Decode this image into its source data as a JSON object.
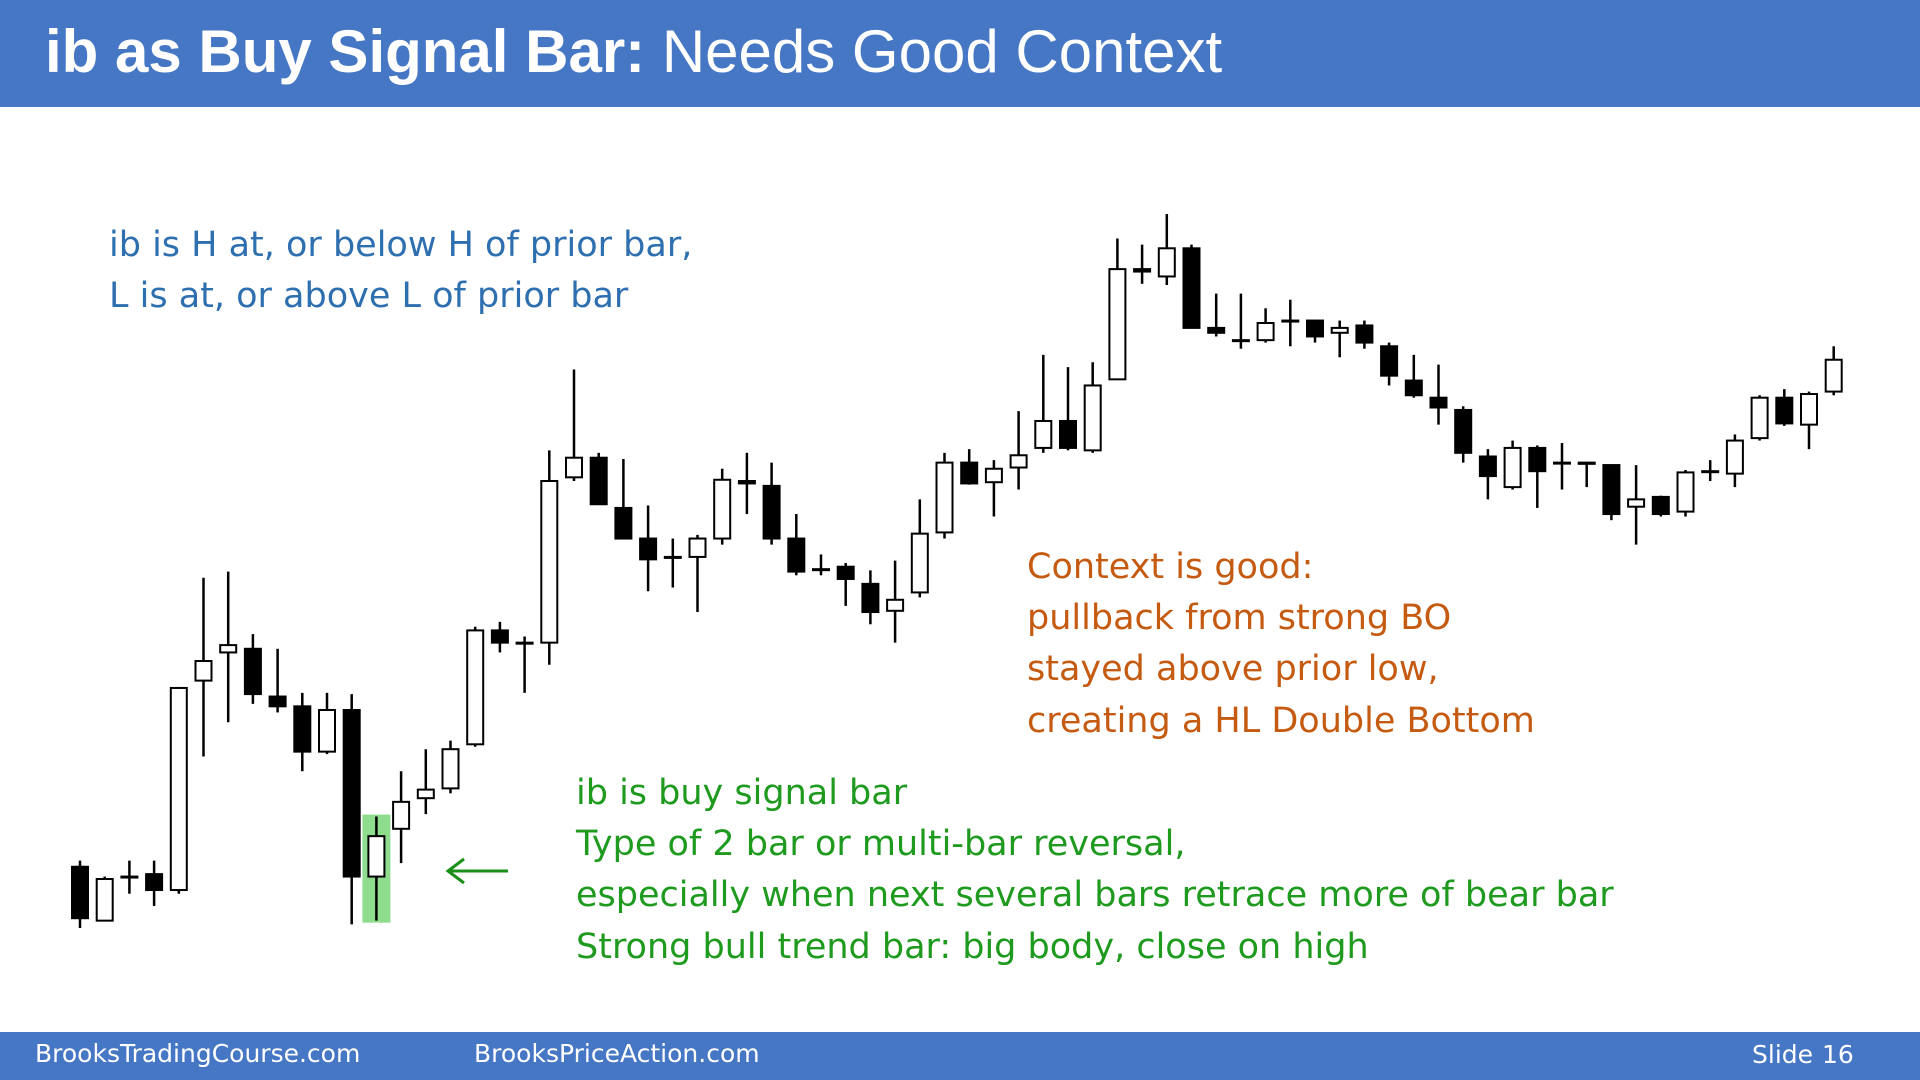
{
  "header": {
    "title_bold": "ib as Buy Signal Bar:",
    "title_rest": "Needs Good Context"
  },
  "chart_data": {
    "type": "candlestick",
    "open": [
      174,
      130,
      166,
      168,
      155,
      326,
      349,
      352,
      313,
      305,
      268,
      302,
      166,
      205,
      230,
      238,
      274,
      367,
      357,
      357,
      492,
      508,
      467,
      442,
      427,
      427,
      442,
      489,
      485,
      442,
      417,
      419,
      405,
      383,
      398,
      447,
      504,
      488,
      500,
      516,
      538,
      514,
      572,
      662,
      656,
      679,
      614,
      604,
      604,
      620,
      620,
      610,
      616,
      599,
      571,
      557,
      547,
      509,
      484,
      516,
      504,
      504,
      502,
      468,
      476,
      464,
      497,
      495,
      524,
      557,
      535,
      562
    ],
    "high": [
      179,
      166,
      179,
      179,
      320,
      410,
      415,
      364,
      352,
      316,
      316,
      315,
      215,
      252,
      270,
      277,
      370,
      374,
      362,
      514,
      580,
      512,
      507,
      469,
      442,
      445,
      499,
      512,
      504,
      462,
      429,
      422,
      416,
      424,
      474,
      512,
      515,
      506,
      546,
      592,
      582,
      586,
      687,
      682,
      707,
      682,
      642,
      642,
      630,
      637,
      620,
      620,
      620,
      602,
      592,
      584,
      550,
      515,
      522,
      518,
      520,
      504,
      502,
      502,
      477,
      498,
      506,
      527,
      559,
      564,
      562,
      599
    ],
    "low": [
      124,
      130,
      152,
      142,
      152,
      264,
      292,
      307,
      300,
      252,
      266,
      127,
      130,
      177,
      217,
      234,
      272,
      349,
      316,
      339,
      489,
      470,
      442,
      399,
      402,
      382,
      437,
      462,
      437,
      412,
      412,
      387,
      372,
      357,
      394,
      442,
      486,
      460,
      482,
      512,
      514,
      512,
      572,
      650,
      649,
      614,
      607,
      597,
      602,
      599,
      602,
      590,
      597,
      567,
      557,
      535,
      504,
      474,
      482,
      467,
      482,
      484,
      457,
      437,
      460,
      460,
      489,
      484,
      522,
      534,
      515,
      559
    ],
    "close": [
      132,
      164,
      166,
      155,
      320,
      342,
      355,
      315,
      305,
      268,
      302,
      166,
      199,
      227,
      237,
      270,
      367,
      357,
      357,
      489,
      508,
      470,
      442,
      425,
      427,
      442,
      490,
      487,
      442,
      415,
      417,
      409,
      382,
      392,
      446,
      504,
      487,
      499,
      510,
      538,
      516,
      567,
      662,
      660,
      679,
      614,
      610,
      604,
      618,
      620,
      607,
      614,
      602,
      575,
      559,
      549,
      512,
      493,
      516,
      497,
      504,
      503,
      462,
      474,
      462,
      496,
      497,
      522,
      557,
      536,
      560,
      588
    ],
    "up_color": "#ffffff",
    "down_color": "#000000",
    "highlight_color": "#8fdc8f"
  },
  "notes": {
    "definition": [
      "ib is H at, or below H of prior bar,",
      "L is at, or above L of prior bar"
    ],
    "context": [
      "Context is good:",
      "pullback from strong BO",
      "stayed above prior low,",
      "creating a HL Double Bottom"
    ],
    "signal": [
      "ib is buy signal bar",
      "Type of 2 bar or multi-bar reversal,",
      "especially when next several bars retrace more of bear bar",
      "Strong bull trend bar: big body, close on high"
    ]
  },
  "footer": {
    "left": "BrooksTradingCourse.com",
    "center": "BrooksPriceAction.com",
    "slide_label": "Slide",
    "slide_number": 16
  }
}
